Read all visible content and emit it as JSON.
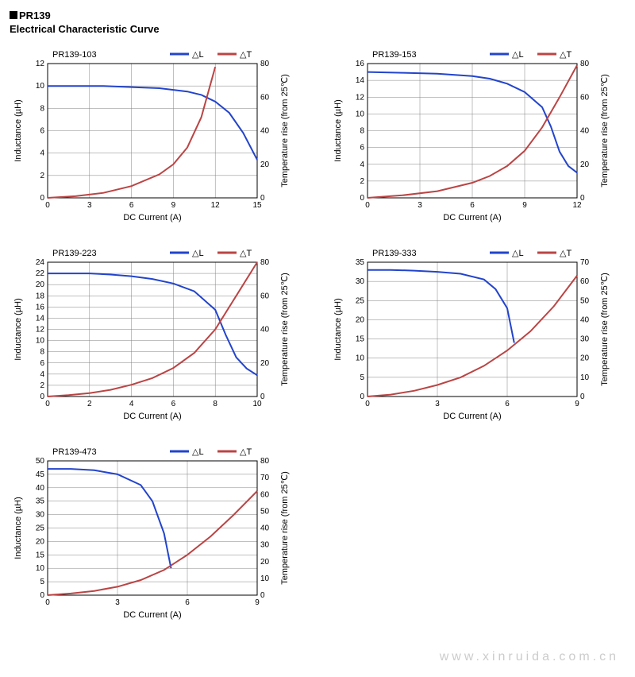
{
  "page_title": "PR139",
  "page_subtitle": "Electrical Characteristic Curve",
  "watermark": "www.xinruida.com.cn",
  "legend": {
    "dl_label": "△L",
    "dt_label": "△T",
    "dl_color": "#2244cc",
    "dt_color": "#bb4444"
  },
  "axis_labels": {
    "x": "DC Current (A)",
    "y_left": "Inductance (µH)",
    "y_right": "Temperature rise (from 25℃)"
  },
  "style": {
    "grid_color": "#808080",
    "axis_color": "#000000",
    "background": "#ffffff",
    "line_width": 2,
    "font_size_ticks": 10,
    "font_size_title": 11,
    "font_size_axis_label": 11
  },
  "charts": [
    {
      "title": "PR139-103",
      "x": {
        "min": 0,
        "max": 15,
        "step": 3
      },
      "y_left": {
        "min": 0,
        "max": 12,
        "step": 2
      },
      "y_right": {
        "min": 0,
        "max": 80,
        "step": 20
      },
      "dl": [
        [
          0,
          10
        ],
        [
          2,
          10
        ],
        [
          4,
          10
        ],
        [
          6,
          9.9
        ],
        [
          8,
          9.8
        ],
        [
          10,
          9.5
        ],
        [
          11,
          9.2
        ],
        [
          12,
          8.6
        ],
        [
          13,
          7.6
        ],
        [
          14,
          5.8
        ],
        [
          15,
          3.4
        ]
      ],
      "dt": [
        [
          0,
          0
        ],
        [
          2,
          1
        ],
        [
          4,
          3
        ],
        [
          6,
          7
        ],
        [
          8,
          14
        ],
        [
          9,
          20
        ],
        [
          10,
          30
        ],
        [
          11,
          48
        ],
        [
          12,
          78
        ]
      ]
    },
    {
      "title": "PR139-153",
      "x": {
        "min": 0,
        "max": 12,
        "step": 3
      },
      "y_left": {
        "min": 0,
        "max": 16,
        "step": 2
      },
      "y_right": {
        "min": 0,
        "max": 80,
        "step": 20
      },
      "dl": [
        [
          0,
          15
        ],
        [
          2,
          14.9
        ],
        [
          4,
          14.8
        ],
        [
          6,
          14.5
        ],
        [
          7,
          14.2
        ],
        [
          8,
          13.6
        ],
        [
          9,
          12.6
        ],
        [
          10,
          10.8
        ],
        [
          10.5,
          8.5
        ],
        [
          11,
          5.5
        ],
        [
          11.5,
          3.8
        ],
        [
          12,
          3.0
        ]
      ],
      "dt": [
        [
          0,
          0
        ],
        [
          2,
          1.5
        ],
        [
          4,
          4
        ],
        [
          6,
          9
        ],
        [
          7,
          13
        ],
        [
          8,
          19
        ],
        [
          9,
          28
        ],
        [
          10,
          42
        ],
        [
          11,
          60
        ],
        [
          12,
          79
        ]
      ]
    },
    {
      "title": "PR139-223",
      "x": {
        "min": 0,
        "max": 10,
        "step": 2
      },
      "y_left": {
        "min": 0,
        "max": 24,
        "step": 2
      },
      "y_right": {
        "min": 0,
        "max": 80,
        "step": 20
      },
      "dl": [
        [
          0,
          22
        ],
        [
          1,
          22
        ],
        [
          2,
          22
        ],
        [
          3,
          21.8
        ],
        [
          4,
          21.5
        ],
        [
          5,
          21
        ],
        [
          6,
          20.2
        ],
        [
          7,
          18.8
        ],
        [
          8,
          15.5
        ],
        [
          8.5,
          11
        ],
        [
          9,
          7
        ],
        [
          9.5,
          5
        ],
        [
          10,
          3.8
        ]
      ],
      "dt": [
        [
          0,
          0
        ],
        [
          1,
          0.8
        ],
        [
          2,
          2
        ],
        [
          3,
          4
        ],
        [
          4,
          7
        ],
        [
          5,
          11
        ],
        [
          6,
          17
        ],
        [
          7,
          26
        ],
        [
          8,
          40
        ],
        [
          9,
          60
        ],
        [
          10,
          80
        ]
      ]
    },
    {
      "title": "PR139-333",
      "x": {
        "min": 0,
        "max": 9,
        "step": 3
      },
      "y_left": {
        "min": 0,
        "max": 35,
        "step": 5
      },
      "y_right": {
        "min": 0,
        "max": 70,
        "step": 10
      },
      "dl": [
        [
          0,
          33
        ],
        [
          1,
          33
        ],
        [
          2,
          32.8
        ],
        [
          3,
          32.5
        ],
        [
          4,
          32
        ],
        [
          5,
          30.5
        ],
        [
          5.5,
          28
        ],
        [
          6,
          23
        ],
        [
          6.3,
          14
        ]
      ],
      "dt": [
        [
          0,
          0
        ],
        [
          1,
          1
        ],
        [
          2,
          3
        ],
        [
          3,
          6
        ],
        [
          4,
          10
        ],
        [
          5,
          16
        ],
        [
          6,
          24
        ],
        [
          7,
          34
        ],
        [
          8,
          47
        ],
        [
          9,
          63
        ]
      ]
    },
    {
      "title": "PR139-473",
      "x": {
        "min": 0,
        "max": 9,
        "step": 3
      },
      "y_left": {
        "min": 0,
        "max": 50,
        "step": 5
      },
      "y_right": {
        "min": 0,
        "max": 80,
        "step": 10
      },
      "dl": [
        [
          0,
          47
        ],
        [
          1,
          47
        ],
        [
          2,
          46.5
        ],
        [
          3,
          45
        ],
        [
          4,
          41
        ],
        [
          4.5,
          35
        ],
        [
          5,
          23
        ],
        [
          5.3,
          10
        ]
      ],
      "dt": [
        [
          0,
          0
        ],
        [
          1,
          1
        ],
        [
          2,
          2.5
        ],
        [
          3,
          5
        ],
        [
          4,
          9
        ],
        [
          5,
          15
        ],
        [
          6,
          24
        ],
        [
          7,
          35
        ],
        [
          8,
          48
        ],
        [
          9,
          62
        ]
      ]
    }
  ]
}
